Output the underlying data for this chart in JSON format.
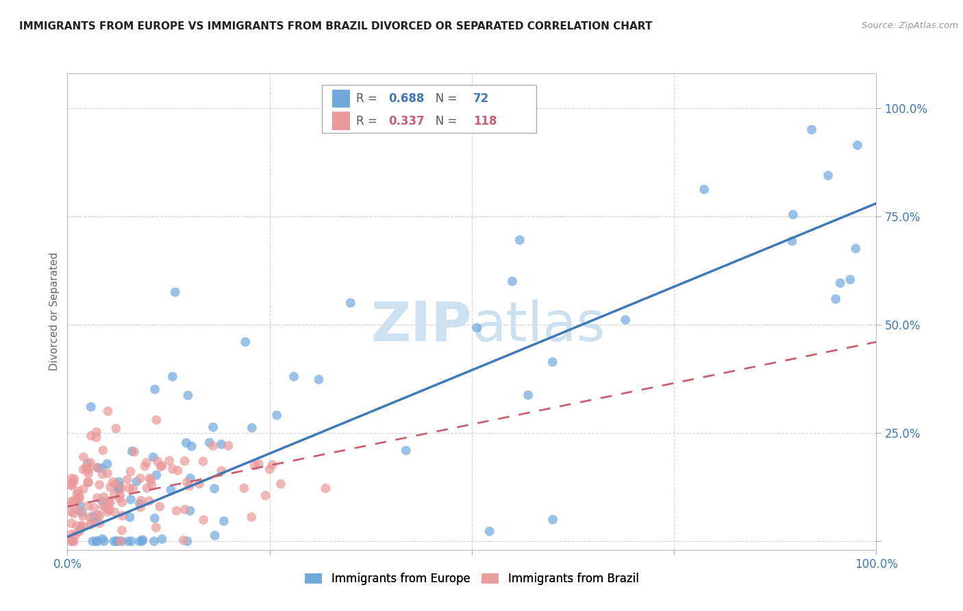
{
  "title": "IMMIGRANTS FROM EUROPE VS IMMIGRANTS FROM BRAZIL DIVORCED OR SEPARATED CORRELATION CHART",
  "source": "Source: ZipAtlas.com",
  "ylabel": "Divorced or Separated",
  "xlim": [
    0.0,
    1.0
  ],
  "ylim": [
    -0.02,
    1.08
  ],
  "ytick_values": [
    0.0,
    0.25,
    0.5,
    0.75,
    1.0
  ],
  "ytick_labels": [
    "",
    "25.0%",
    "50.0%",
    "75.0%",
    "100.0%"
  ],
  "xtick_values": [
    0.0,
    0.25,
    0.5,
    0.75,
    1.0
  ],
  "xtick_labels": [
    "0.0%",
    "",
    "",
    "",
    "100.0%"
  ],
  "blue_R": 0.688,
  "blue_N": 72,
  "pink_R": 0.337,
  "pink_N": 118,
  "blue_color": "#6fa8dc",
  "pink_color": "#ea9999",
  "blue_line_color": "#3d78b8",
  "pink_line_color": "#c96070",
  "background_color": "#ffffff",
  "grid_color": "#cccccc",
  "watermark_color": "#cde0f0",
  "blue_line_x0": 0.0,
  "blue_line_y0": 0.01,
  "blue_line_x1": 1.0,
  "blue_line_y1": 0.78,
  "pink_line_x0": 0.0,
  "pink_line_y0": 0.08,
  "pink_line_x1": 1.0,
  "pink_line_y1": 0.46
}
